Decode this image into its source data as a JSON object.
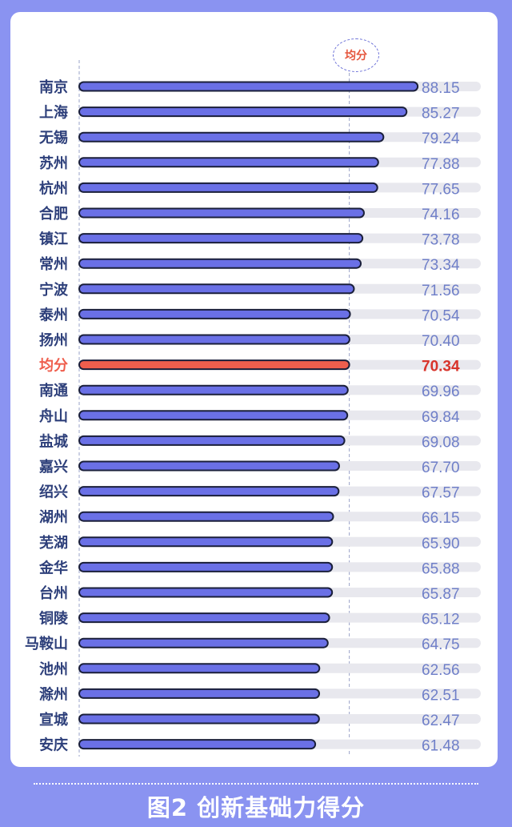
{
  "colors": {
    "background": "#8a93f1",
    "bar": "#6a70e6",
    "bar_outline": "#1a1f3a",
    "average_bar": "#ef5e4d",
    "average_text": "#d8332b",
    "label_text": "#2d3f7a",
    "value_text": "#6f7fc8",
    "track": "#e8e8ee"
  },
  "badge": "均分",
  "footer_title": "图2 创新基础力得分",
  "chart_data": {
    "type": "bar",
    "orientation": "horizontal",
    "categories": [
      "南京",
      "上海",
      "无锡",
      "苏州",
      "杭州",
      "合肥",
      "镇江",
      "常州",
      "宁波",
      "泰州",
      "扬州",
      "均分",
      "南通",
      "舟山",
      "盐城",
      "嘉兴",
      "绍兴",
      "湖州",
      "芜湖",
      "金华",
      "台州",
      "铜陵",
      "马鞍山",
      "池州",
      "滁州",
      "宣城",
      "安庆"
    ],
    "value_labels": [
      "88.15",
      "85.27",
      "79.24",
      "77.88",
      "77.65",
      "74.16",
      "73.78",
      "73.34",
      "71.56",
      "70.54",
      "70.40",
      "70.34",
      "69.96",
      "69.84",
      "69.08",
      "67.70",
      "67.57",
      "66.15",
      "65.90",
      "65.88",
      "65.87",
      "65.12",
      "64.75",
      "62.56",
      "62.51",
      "62.47",
      "61.48"
    ],
    "values": [
      88.15,
      85.27,
      79.24,
      77.88,
      77.65,
      74.16,
      73.78,
      73.34,
      71.56,
      70.54,
      70.4,
      70.34,
      69.96,
      69.84,
      69.08,
      67.7,
      67.57,
      66.15,
      65.9,
      65.88,
      65.87,
      65.12,
      64.75,
      62.56,
      62.51,
      62.47,
      61.48
    ],
    "highlight_category": "均分",
    "average": 70.34,
    "axis_range": [
      0,
      100
    ]
  }
}
